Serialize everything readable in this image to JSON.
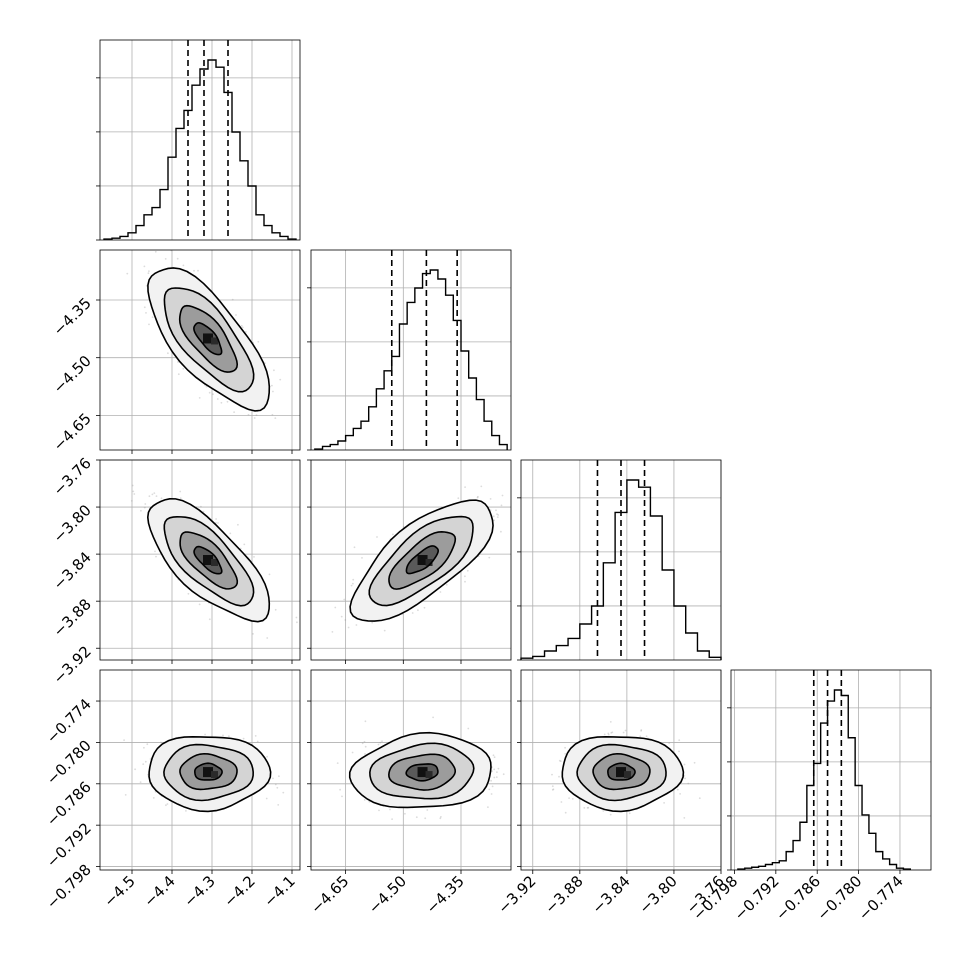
{
  "chart_data": {
    "type": "corner",
    "grid": true,
    "scatter_color": "#9a9a9a",
    "contour_color": "#000000",
    "axes": [
      {
        "ticks": [
          -4.5,
          -4.4,
          -4.3,
          -4.2,
          -4.1
        ],
        "tick_labels": [
          "−4.5",
          "−4.4",
          "−4.3",
          "−4.2",
          "−4.1"
        ],
        "range": [
          -4.58,
          -4.08
        ]
      },
      {
        "ticks": [
          -4.65,
          -4.5,
          -4.35
        ],
        "tick_labels": [
          "−4.65",
          "−4.50",
          "−4.35"
        ],
        "range": [
          -4.74,
          -4.22
        ]
      },
      {
        "ticks": [
          -3.92,
          -3.88,
          -3.84,
          -3.8,
          -3.76
        ],
        "tick_labels": [
          "−3.92",
          "−3.88",
          "−3.84",
          "−3.80",
          "−3.76"
        ],
        "range": [
          -3.93,
          -3.76
        ]
      },
      {
        "ticks": [
          -0.798,
          -0.792,
          -0.786,
          -0.78,
          -0.774
        ],
        "tick_labels": [
          "−0.798",
          "−0.792",
          "−0.786",
          "−0.780",
          "−0.774"
        ],
        "range": [
          -0.7985,
          -0.7695
        ]
      }
    ],
    "marginals": [
      {
        "quantiles": [
          -4.36,
          -4.32,
          -4.26
        ],
        "bins": [
          -4.57,
          -4.55,
          -4.53,
          -4.51,
          -4.49,
          -4.47,
          -4.45,
          -4.43,
          -4.41,
          -4.39,
          -4.37,
          -4.35,
          -4.33,
          -4.31,
          -4.29,
          -4.27,
          -4.25,
          -4.23,
          -4.21,
          -4.19,
          -4.17,
          -4.15,
          -4.13,
          -4.11,
          -4.09
        ],
        "counts": [
          0.005,
          0.01,
          0.02,
          0.04,
          0.08,
          0.14,
          0.18,
          0.28,
          0.46,
          0.62,
          0.72,
          0.86,
          0.95,
          1.0,
          0.96,
          0.82,
          0.6,
          0.44,
          0.3,
          0.14,
          0.08,
          0.04,
          0.02,
          0.005
        ]
      },
      {
        "quantiles": [
          -4.53,
          -4.44,
          -4.36
        ],
        "bins": [
          -4.73,
          -4.71,
          -4.69,
          -4.67,
          -4.65,
          -4.63,
          -4.61,
          -4.59,
          -4.57,
          -4.55,
          -4.53,
          -4.51,
          -4.49,
          -4.47,
          -4.45,
          -4.43,
          -4.41,
          -4.39,
          -4.37,
          -4.35,
          -4.33,
          -4.31,
          -4.29,
          -4.27,
          -4.25,
          -4.23
        ],
        "counts": [
          0.005,
          0.02,
          0.03,
          0.05,
          0.08,
          0.12,
          0.16,
          0.24,
          0.34,
          0.44,
          0.52,
          0.7,
          0.82,
          0.9,
          0.98,
          1.0,
          0.95,
          0.86,
          0.72,
          0.55,
          0.4,
          0.28,
          0.16,
          0.08,
          0.03
        ]
      },
      {
        "quantiles": [
          -3.865,
          -3.845,
          -3.825
        ],
        "bins": [
          -3.93,
          -3.92,
          -3.91,
          -3.9,
          -3.89,
          -3.88,
          -3.87,
          -3.86,
          -3.85,
          -3.84,
          -3.83,
          -3.82,
          -3.81,
          -3.8,
          -3.79,
          -3.78,
          -3.77,
          -3.76
        ],
        "counts": [
          0.01,
          0.02,
          0.05,
          0.08,
          0.12,
          0.2,
          0.3,
          0.54,
          0.82,
          1.0,
          0.96,
          0.8,
          0.5,
          0.3,
          0.15,
          0.05,
          0.015
        ]
      },
      {
        "quantiles": [
          -0.7865,
          -0.7845,
          -0.7825
        ],
        "bins": [
          -0.7975,
          -0.7965,
          -0.7955,
          -0.7945,
          -0.7935,
          -0.7925,
          -0.7915,
          -0.7905,
          -0.7895,
          -0.7885,
          -0.7875,
          -0.7865,
          -0.7855,
          -0.7845,
          -0.7835,
          -0.7825,
          -0.7815,
          -0.7805,
          -0.7795,
          -0.7785,
          -0.7775,
          -0.7765,
          -0.7755,
          -0.7745,
          -0.7735,
          -0.7725
        ],
        "counts": [
          0.005,
          0.01,
          0.015,
          0.02,
          0.03,
          0.04,
          0.05,
          0.1,
          0.16,
          0.26,
          0.46,
          0.58,
          0.8,
          0.92,
          0.98,
          0.95,
          0.72,
          0.46,
          0.3,
          0.2,
          0.1,
          0.06,
          0.03,
          0.01,
          0.005
        ]
      }
    ],
    "joint": [
      {
        "x_axis": 0,
        "y_axis": 1,
        "mean": [
          -4.31,
          -4.45
        ],
        "sd": [
          0.062,
          0.075
        ],
        "corr": -0.72
      },
      {
        "x_axis": 0,
        "y_axis": 2,
        "mean": [
          -4.31,
          -3.845
        ],
        "sd": [
          0.062,
          0.021
        ],
        "corr": -0.72
      },
      {
        "x_axis": 1,
        "y_axis": 2,
        "mean": [
          -4.45,
          -3.845
        ],
        "sd": [
          0.075,
          0.021
        ],
        "corr": 0.72
      },
      {
        "x_axis": 0,
        "y_axis": 3,
        "mean": [
          -4.31,
          -0.7843
        ],
        "sd": [
          0.062,
          0.0022
        ],
        "corr": 0.0
      },
      {
        "x_axis": 1,
        "y_axis": 3,
        "mean": [
          -4.45,
          -0.7843
        ],
        "sd": [
          0.075,
          0.0022
        ],
        "corr": 0.1
      },
      {
        "x_axis": 2,
        "y_axis": 3,
        "mean": [
          -3.845,
          -0.7843
        ],
        "sd": [
          0.021,
          0.0022
        ],
        "corr": 0.0
      }
    ]
  }
}
